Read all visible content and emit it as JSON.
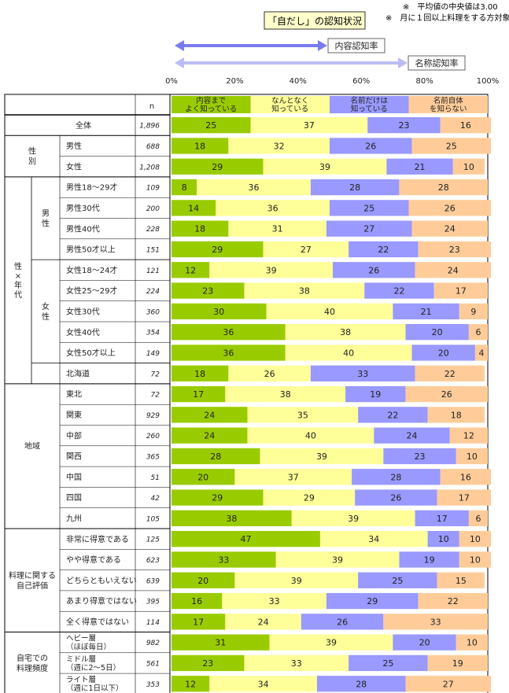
{
  "notes": [
    "※　平均値の中央値は3.00",
    "※　月に１回以上料理をする方対象"
  ],
  "chart_data": {
    "type": "bar",
    "orientation": "horizontal",
    "stacked": true,
    "title": "「自だし」の認知状況",
    "n_header": "n",
    "legend_arrows": [
      {
        "label": "内容認知率",
        "color": "#7b7bf0"
      },
      {
        "label": "名称認知率",
        "color": "#bcbcf6"
      }
    ],
    "xlim": [
      0,
      100
    ],
    "x_ticks": [
      "0%",
      "20%",
      "40%",
      "60%",
      "80%",
      "100%"
    ],
    "grid": false,
    "series": [
      {
        "name": "内容まで\nよく知っている",
        "color": "#99cc00"
      },
      {
        "name": "なんとなく\n知っている",
        "color": "#ffff99"
      },
      {
        "name": "名前だけは\n知っている",
        "color": "#9999ff"
      },
      {
        "name": "名前自体\nを知らない",
        "color": "#ffcc99"
      }
    ],
    "groups": [
      {
        "label": "",
        "rows": [
          0
        ]
      },
      {
        "label": "性\n別",
        "rows": [
          1,
          2
        ]
      },
      {
        "label": "性\n×\n年\n代",
        "rows": [
          3,
          12
        ],
        "subgroups": [
          {
            "label": "男\n性",
            "rows": [
              3,
              6
            ]
          },
          {
            "label": "女\n性",
            "rows": [
              7,
              11
            ]
          }
        ]
      },
      {
        "label": "地域",
        "rows": [
          12,
          19
        ]
      },
      {
        "label": "料理に関する\n自己評価",
        "rows": [
          20,
          24
        ]
      },
      {
        "label": "自宅での\n料理頻度",
        "rows": [
          25,
          27
        ]
      }
    ],
    "rows": [
      {
        "label": "全体",
        "n": "1,896",
        "values": [
          25,
          37,
          23,
          16
        ]
      },
      {
        "label": "男性",
        "n": "688",
        "values": [
          18,
          32,
          26,
          25
        ]
      },
      {
        "label": "女性",
        "n": "1,208",
        "values": [
          29,
          39,
          21,
          10
        ]
      },
      {
        "label": "男性18～29才",
        "n": "109",
        "values": [
          8,
          36,
          28,
          28
        ]
      },
      {
        "label": "男性30代",
        "n": "200",
        "values": [
          14,
          36,
          25,
          26
        ]
      },
      {
        "label": "男性40代",
        "n": "228",
        "values": [
          18,
          31,
          27,
          24
        ]
      },
      {
        "label": "男性50才以上",
        "n": "151",
        "values": [
          29,
          27,
          22,
          23
        ]
      },
      {
        "label": "女性18～24才",
        "n": "121",
        "values": [
          12,
          39,
          26,
          24
        ]
      },
      {
        "label": "女性25～29才",
        "n": "224",
        "values": [
          23,
          38,
          22,
          17
        ]
      },
      {
        "label": "女性30代",
        "n": "360",
        "values": [
          30,
          40,
          21,
          9
        ]
      },
      {
        "label": "女性40代",
        "n": "354",
        "values": [
          36,
          38,
          20,
          6
        ]
      },
      {
        "label": "女性50才以上",
        "n": "149",
        "values": [
          36,
          40,
          20,
          4
        ]
      },
      {
        "label": "北海道",
        "n": "72",
        "values": [
          18,
          26,
          33,
          22
        ]
      },
      {
        "label": "東北",
        "n": "72",
        "values": [
          17,
          38,
          19,
          26
        ]
      },
      {
        "label": "関東",
        "n": "929",
        "values": [
          24,
          35,
          22,
          18
        ]
      },
      {
        "label": "中部",
        "n": "260",
        "values": [
          24,
          40,
          24,
          12
        ]
      },
      {
        "label": "関西",
        "n": "365",
        "values": [
          28,
          39,
          23,
          10
        ]
      },
      {
        "label": "中国",
        "n": "51",
        "values": [
          20,
          37,
          28,
          16
        ]
      },
      {
        "label": "四国",
        "n": "42",
        "values": [
          29,
          29,
          26,
          17
        ]
      },
      {
        "label": "九州",
        "n": "105",
        "values": [
          38,
          39,
          17,
          6
        ]
      },
      {
        "label": "非常に得意である",
        "n": "125",
        "values": [
          47,
          34,
          10,
          10
        ]
      },
      {
        "label": "やや得意である",
        "n": "623",
        "values": [
          33,
          39,
          19,
          10
        ]
      },
      {
        "label": "どちらともいえない",
        "n": "639",
        "values": [
          20,
          39,
          25,
          15
        ]
      },
      {
        "label": "あまり得意ではない",
        "n": "395",
        "values": [
          16,
          33,
          29,
          22
        ]
      },
      {
        "label": "全く得意ではない",
        "n": "114",
        "values": [
          17,
          24,
          26,
          33
        ]
      },
      {
        "label": "ヘビー層\n（ほぼ毎日）",
        "n": "982",
        "values": [
          31,
          39,
          20,
          10
        ]
      },
      {
        "label": "ミドル層\n（週に2～5日）",
        "n": "561",
        "values": [
          23,
          33,
          25,
          19
        ]
      },
      {
        "label": "ライト層\n（週に1日以下）",
        "n": "353",
        "values": [
          12,
          34,
          28,
          27
        ]
      }
    ]
  }
}
